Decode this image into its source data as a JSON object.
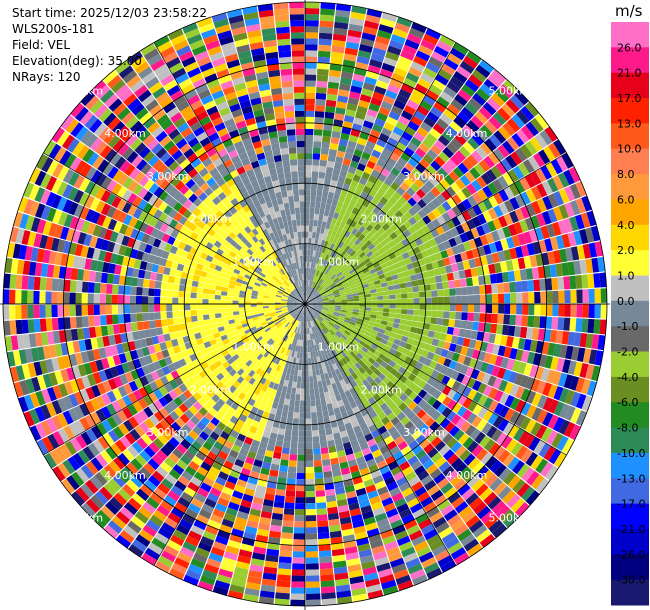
{
  "header": {
    "start_time": "Start time: 2025/12/03 23:58:22",
    "instrument": "WLS200s-181",
    "field": "Field: VEL",
    "elevation": "Elevation(deg): 35.00",
    "nrays": "NRays: 120"
  },
  "chart_data": {
    "type": "ppi",
    "field": "VEL",
    "units": "m/s",
    "nrays": 120,
    "elevation_deg": 35.0,
    "range_rings_km": [
      1.0,
      2.0,
      3.0,
      4.0,
      5.0
    ],
    "ring_labels": [
      "1.00km",
      "2.00km",
      "3.00km",
      "4.00km",
      "5.00km"
    ],
    "max_range_km": 5.0,
    "colorbar": {
      "unit_label": "m/s",
      "ticks": [
        "26.0",
        "21.0",
        "17.0",
        "13.0",
        "10.0",
        "8.0",
        "6.0",
        "4.0",
        "2.0",
        "1.0",
        "0.0",
        "-1.0",
        "-2.0",
        "-4.0",
        "-6.0",
        "-8.0",
        "-10.0",
        "-13.0",
        "-17.0",
        "-21.0",
        "-26.0",
        "-30.0"
      ],
      "colors": [
        "#ff6ec7",
        "#ff1a8c",
        "#e6001a",
        "#ff2200",
        "#ff5a1a",
        "#ff7f50",
        "#ff9a3c",
        "#ffa500",
        "#ffd700",
        "#ffff33",
        "#c0c0c0",
        "#778899",
        "#696969",
        "#9acd32",
        "#6b8e23",
        "#228b22",
        "#2e8b57",
        "#1e90ff",
        "#4169e1",
        "#0000ff",
        "#0000cd",
        "#000080",
        "#191970"
      ]
    }
  }
}
